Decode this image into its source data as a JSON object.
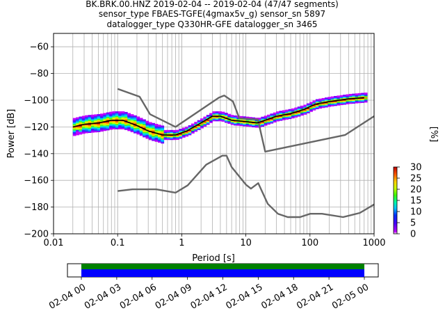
{
  "chart_data": {
    "type": "heatmap",
    "title_lines": [
      "BK.BRK.00.HNZ   2019-02-04 -- 2019-02-04  (47/47 segments)",
      "sensor_type FBAES-TGFE(4gmax5v_g) sensor_sn 5897",
      "datalogger_type Q330HR-GFE datalogger_sn 3465"
    ],
    "xlabel": "Period [s]",
    "ylabel": "Power [dB]",
    "x_scale": "log",
    "xlim": [
      0.01,
      1000
    ],
    "ylim": [
      -200,
      -50
    ],
    "grid": true,
    "x_ticks": [
      0.01,
      0.1,
      1,
      10,
      100,
      1000
    ],
    "x_tick_labels": [
      "0.01",
      "0.1",
      "1",
      "10",
      "100",
      "1000"
    ],
    "y_ticks": [
      -200,
      -180,
      -160,
      -140,
      -120,
      -100,
      -80,
      -60
    ],
    "y_tick_labels": [
      "−200",
      "−180",
      "−160",
      "−140",
      "−120",
      "−100",
      "−80",
      "−60"
    ],
    "colorbar": {
      "label": "[%]",
      "range": [
        0,
        30
      ],
      "ticks": [
        0,
        5,
        10,
        15,
        20,
        25,
        30
      ],
      "tick_labels": [
        "0",
        "5",
        "10",
        "15",
        "20",
        "25",
        "30"
      ]
    },
    "series": [
      {
        "role": "noise model high",
        "color": "#666666",
        "x": [
          0.1,
          0.22,
          0.32,
          0.8,
          3.8,
          4.6,
          6.3,
          7.9,
          15.4,
          20,
          354.8,
          1000
        ],
        "y": [
          -91.5,
          -97.4,
          -110.5,
          -120,
          -98,
          -96.5,
          -101,
          -113.5,
          -114.5,
          -138.5,
          -126,
          -112
        ]
      },
      {
        "role": "noise model low",
        "color": "#666666",
        "x": [
          0.1,
          0.17,
          0.4,
          0.8,
          1.24,
          2.4,
          4.3,
          5.0,
          6.0,
          10,
          12,
          15.6,
          21.9,
          31.6,
          45,
          70,
          101,
          154,
          328,
          600,
          1000
        ],
        "y": [
          -168,
          -166.7,
          -166.7,
          -169.2,
          -163.7,
          -148.3,
          -141.5,
          -141.5,
          -150,
          -163.2,
          -166.2,
          -162.1,
          -177.5,
          -185,
          -187.5,
          -187.5,
          -185,
          -185,
          -187.5,
          -184.4,
          -178
        ]
      },
      {
        "role": "mode",
        "color": "#000000",
        "x": [
          0.02,
          0.03,
          0.05,
          0.08,
          0.12,
          0.2,
          0.3,
          0.5,
          0.8,
          1.2,
          2,
          3,
          4,
          6,
          10,
          15,
          20,
          30,
          50,
          80,
          120,
          200,
          400,
          700
        ],
        "y": [
          -120,
          -118,
          -117,
          -115,
          -115,
          -119,
          -123,
          -126,
          -126,
          -123,
          -117,
          -112,
          -112,
          -115,
          -116,
          -117,
          -115,
          -112,
          -110,
          -107,
          -103,
          -101,
          -99,
          -98
        ]
      }
    ],
    "data_availability": {
      "time_tick_labels": [
        "02-04 00",
        "02-04 03",
        "02-04 06",
        "02-04 09",
        "02-04 12",
        "02-04 15",
        "02-04 18",
        "02-04 21",
        "02-05 00"
      ],
      "bar_colors": [
        "#008000",
        "#0000ff"
      ]
    }
  }
}
